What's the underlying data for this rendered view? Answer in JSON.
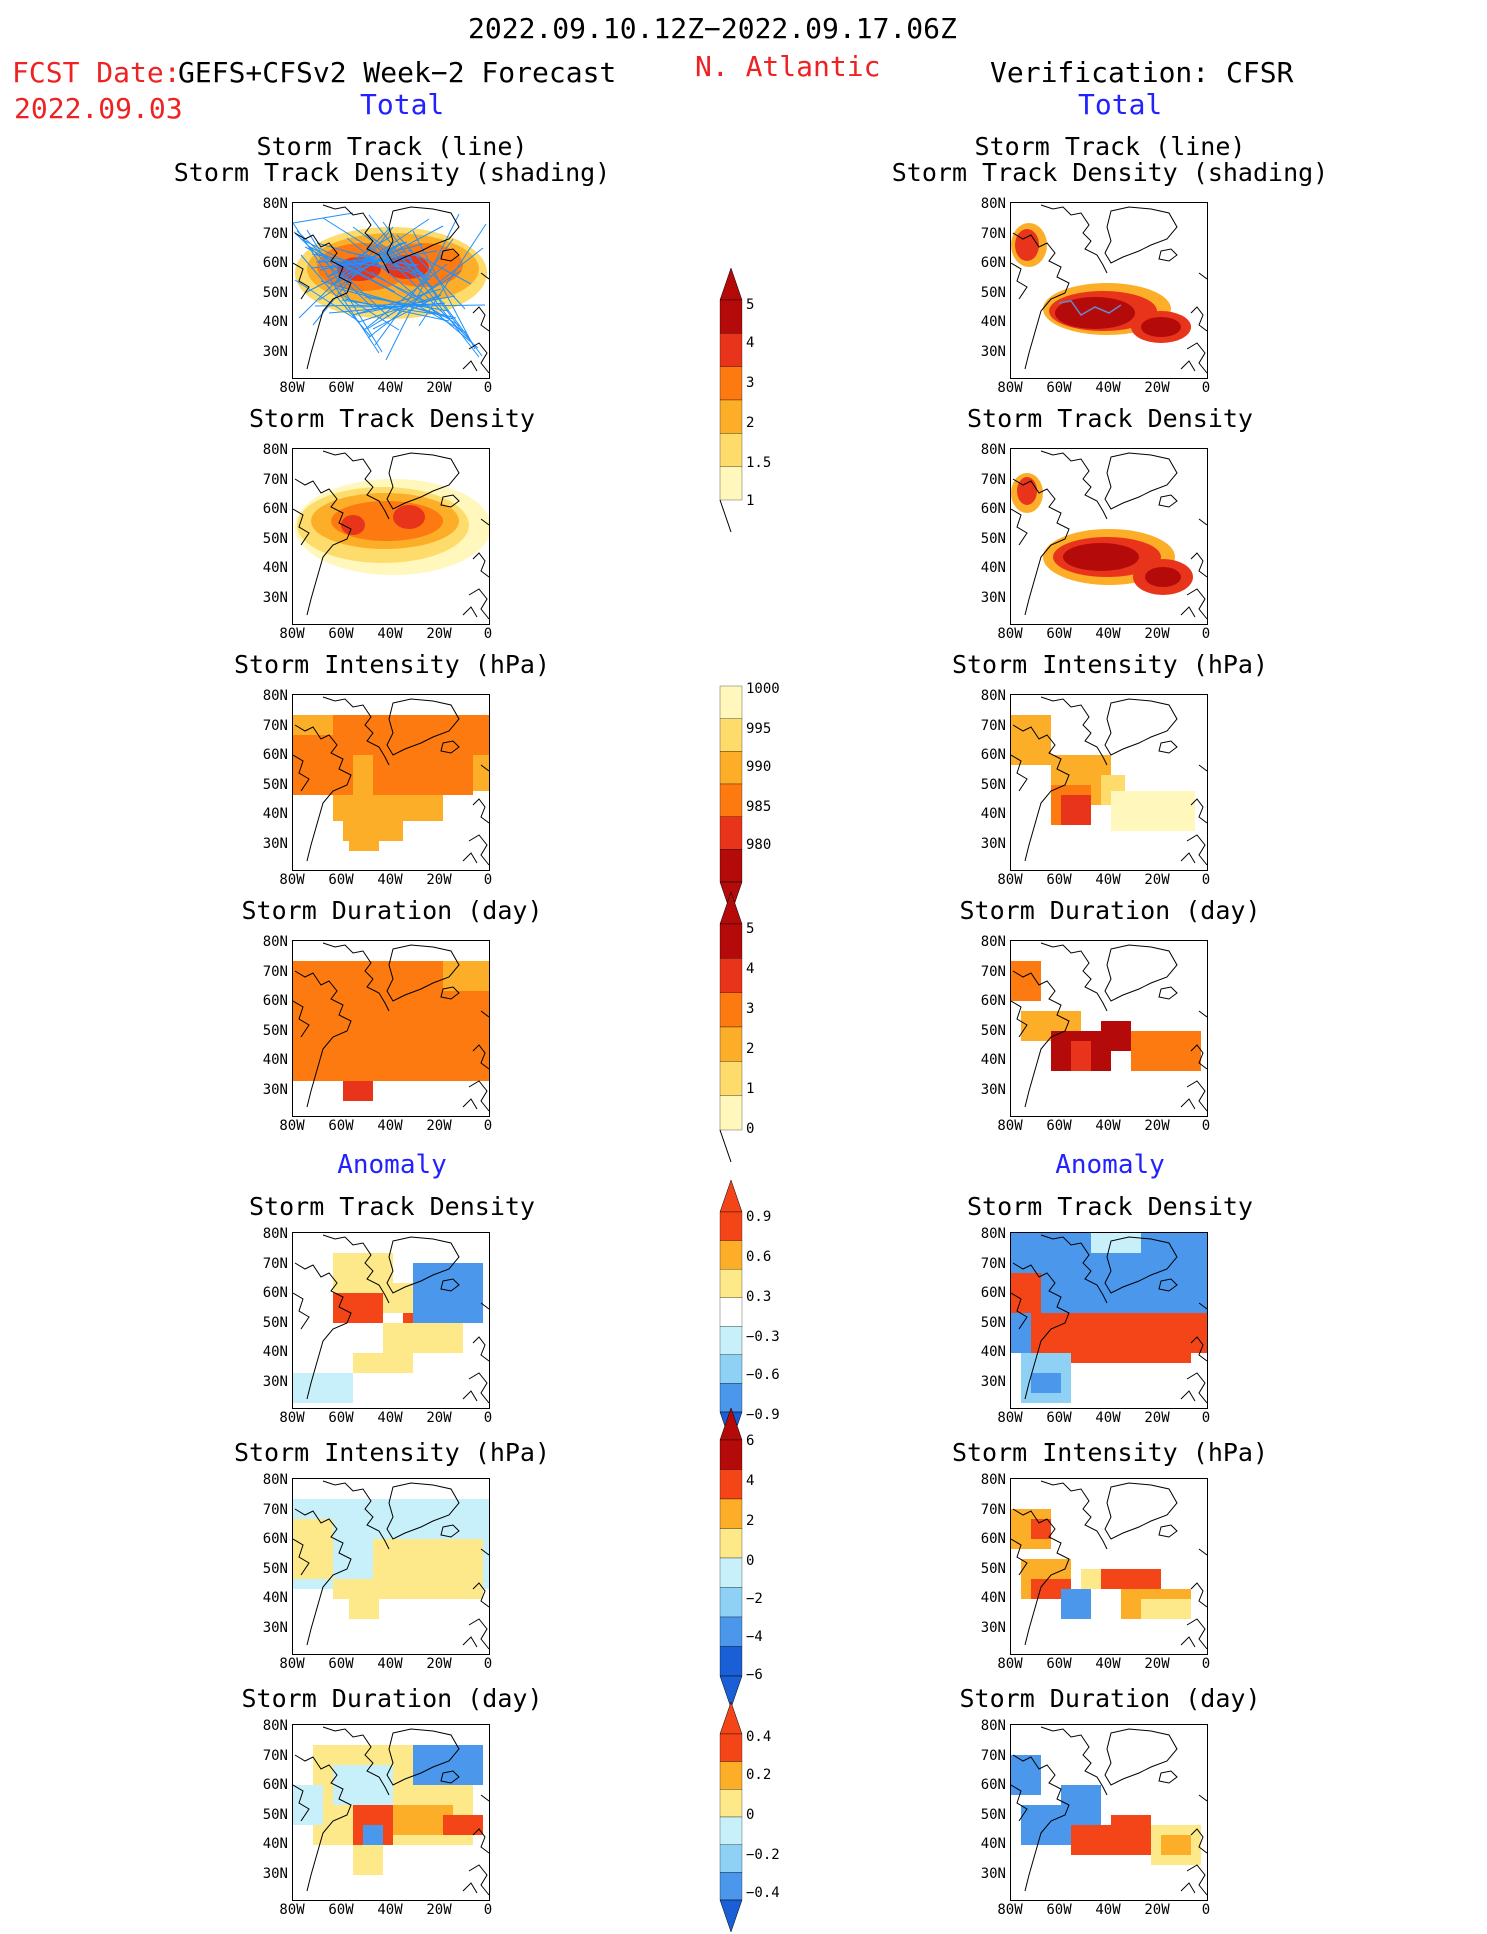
{
  "header": {
    "date_range": "2022.09.10.12Z−2022.09.17.06Z",
    "fcst_label": "FCST Date:",
    "fcst_model": "GEFS+CFSv2 Week−2 Forecast",
    "fcst_date": "2022.09.03",
    "region": "N. Atlantic",
    "verification": "Verification: CFSR"
  },
  "sections": {
    "total": "Total",
    "anomaly": "Anomaly"
  },
  "panel_titles": {
    "track_line": "Storm Track (line)",
    "track_shading": "Storm Track Density (shading)",
    "density": "Storm Track Density",
    "intensity": "Storm Intensity (hPa)",
    "duration": "Storm Duration (day)"
  },
  "axes": {
    "lat_ticks": [
      "80N",
      "70N",
      "60N",
      "50N",
      "40N",
      "30N"
    ],
    "lon_ticks": [
      "80W",
      "60W",
      "40W",
      "20W",
      "0"
    ]
  },
  "colorbars": {
    "density_total": [
      "1",
      "1.5",
      "2",
      "3",
      "4",
      "5"
    ],
    "intensity_total": [
      "1000",
      "995",
      "990",
      "985",
      "980"
    ],
    "duration_total": [
      "0",
      "1",
      "2",
      "3",
      "4",
      "5"
    ],
    "density_anom": [
      "−0.9",
      "−0.6",
      "−0.3",
      "0.3",
      "0.6",
      "0.9"
    ],
    "intensity_anom": [
      "−6",
      "−4",
      "−2",
      "0",
      "2",
      "4",
      "6"
    ],
    "duration_anom": [
      "−0.4",
      "−0.2",
      "0",
      "0.2",
      "0.4"
    ]
  },
  "colors": {
    "total_scale": [
      "#fff7bc",
      "#fddc6c",
      "#fdae28",
      "#fc7a10",
      "#e8341a",
      "#b40a0a"
    ],
    "anom_warm": [
      "#fde98a",
      "#fdae28",
      "#f44518"
    ],
    "anom_cool": [
      "#c7f0fb",
      "#8fd0f5",
      "#4a97ec",
      "#1a5fd6"
    ],
    "track_line": "#1e90ff"
  }
}
